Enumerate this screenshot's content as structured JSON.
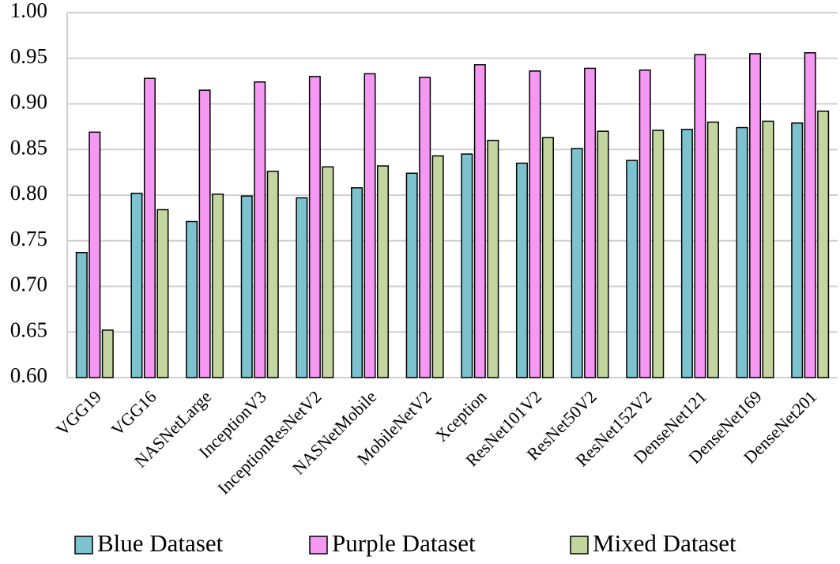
{
  "chart_data": {
    "type": "bar",
    "categories": [
      "VGG19",
      "VGG16",
      "NASNetLarge",
      "InceptionV3",
      "InceptionResNetV2",
      "NASNetMobile",
      "MobileNetV2",
      "Xception",
      "ResNet101V2",
      "ResNet50V2",
      "ResNet152V2",
      "DenseNet121",
      "DenseNet169",
      "DenseNet201"
    ],
    "series": [
      {
        "name": "Blue Dataset",
        "color": "#7cc3cf",
        "values": [
          0.737,
          0.802,
          0.771,
          0.799,
          0.797,
          0.808,
          0.824,
          0.845,
          0.835,
          0.851,
          0.838,
          0.872,
          0.874,
          0.879
        ]
      },
      {
        "name": "Purple Dataset",
        "color": "#f598f3",
        "values": [
          0.869,
          0.928,
          0.915,
          0.924,
          0.93,
          0.933,
          0.929,
          0.943,
          0.936,
          0.939,
          0.937,
          0.954,
          0.955,
          0.956
        ]
      },
      {
        "name": "Mixed Dataset",
        "color": "#c4d6a0",
        "values": [
          0.652,
          0.784,
          0.801,
          0.826,
          0.831,
          0.832,
          0.843,
          0.86,
          0.863,
          0.87,
          0.871,
          0.88,
          0.881,
          0.892
        ]
      }
    ],
    "ylim": [
      0.6,
      1.0
    ],
    "yticks": [
      {
        "value": 0.6,
        "label": "0.60"
      },
      {
        "value": 0.65,
        "label": "0.65"
      },
      {
        "value": 0.7,
        "label": "0.70"
      },
      {
        "value": 0.75,
        "label": "0.75"
      },
      {
        "value": 0.8,
        "label": "0.80"
      },
      {
        "value": 0.85,
        "label": "0.85"
      },
      {
        "value": 0.9,
        "label": "0.90"
      },
      {
        "value": 0.95,
        "label": "0.95"
      },
      {
        "value": 1.0,
        "label": "1.00"
      }
    ],
    "grid": true,
    "legend": "bottom"
  }
}
